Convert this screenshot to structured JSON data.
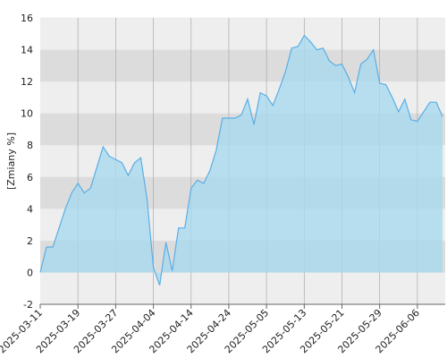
{
  "chart_data": {
    "type": "area",
    "y_label": "[Zmiany %]",
    "categories": [
      "2025-03-11",
      null,
      null,
      null,
      null,
      null,
      "2025-03-19",
      null,
      null,
      null,
      null,
      null,
      "2025-03-27",
      null,
      null,
      null,
      null,
      null,
      "2025-04-04",
      null,
      null,
      null,
      null,
      null,
      "2025-04-14",
      null,
      null,
      null,
      null,
      null,
      "2025-04-24",
      null,
      null,
      null,
      null,
      null,
      "2025-05-05",
      null,
      null,
      null,
      null,
      null,
      "2025-05-13",
      null,
      null,
      null,
      null,
      null,
      "2025-05-21",
      null,
      null,
      null,
      null,
      null,
      "2025-05-29",
      null,
      null,
      null,
      null,
      null,
      "2025-06-06",
      null,
      null,
      null,
      null
    ],
    "values": [
      0,
      1.6,
      1.6,
      2.8,
      4.0,
      5.0,
      5.6,
      5.0,
      5.3,
      6.6,
      7.9,
      7.3,
      7.1,
      6.9,
      6.1,
      6.9,
      7.2,
      4.6,
      0.3,
      -0.8,
      1.9,
      0.1,
      2.8,
      2.8,
      5.3,
      5.8,
      5.6,
      6.4,
      7.7,
      9.7,
      9.7,
      9.7,
      9.9,
      10.9,
      9.3,
      11.3,
      11.1,
      10.5,
      11.5,
      12.6,
      14.1,
      14.2,
      14.9,
      14.5,
      14.0,
      14.1,
      13.3,
      13.0,
      13.1,
      12.3,
      11.3,
      13.1,
      13.4,
      14.0,
      11.9,
      11.8,
      11.0,
      10.1,
      10.9,
      9.6,
      9.5,
      10.1,
      10.7,
      10.7,
      9.8
    ],
    "color": "#5aaee6",
    "fill": "#a9d9ee",
    "ylim": [
      -2,
      16
    ],
    "yticks": [
      -2,
      0,
      2,
      4,
      6,
      8,
      10,
      12,
      14,
      16
    ],
    "grid": true
  }
}
